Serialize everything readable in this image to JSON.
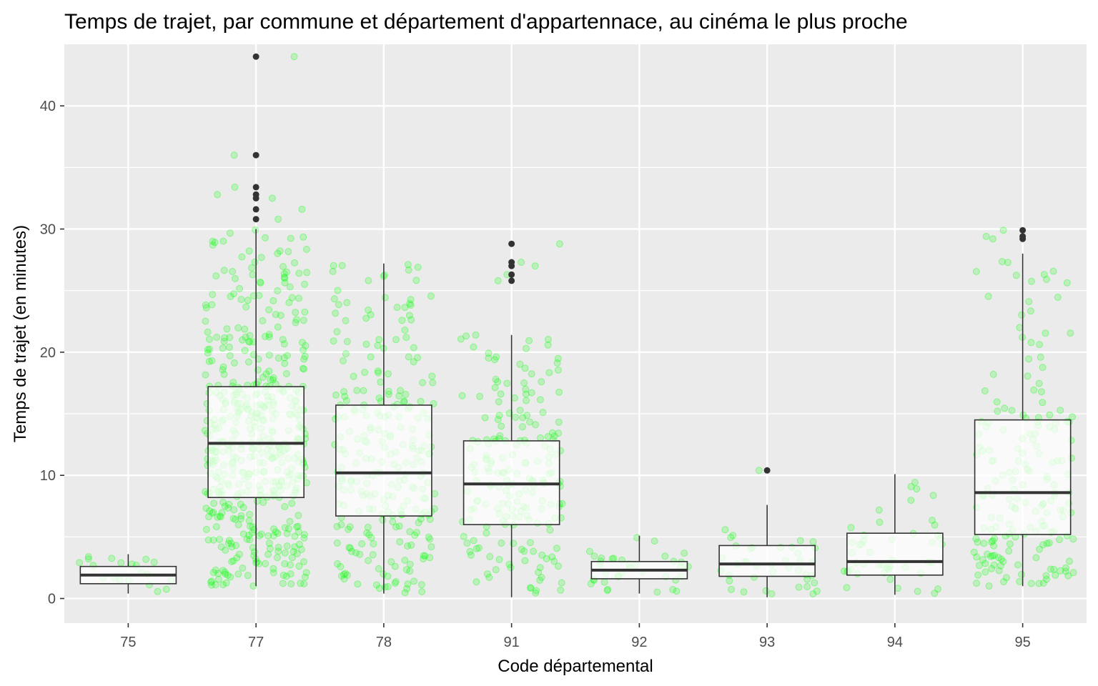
{
  "chart_data": {
    "type": "boxplot",
    "title": "Temps de trajet, par commune et département d'appartennace, au cinéma le plus proche",
    "xlabel": "Code départemental",
    "ylabel": "Temps de trajet (en minutes)",
    "ylim": [
      -2,
      45
    ],
    "y_ticks": [
      0,
      10,
      20,
      30,
      40
    ],
    "grid": true,
    "colors": {
      "panel": "#ebebeb",
      "grid": "#ffffff",
      "box_stroke": "#333333",
      "box_fill": "#ffffff",
      "outlier": "#333333",
      "jitter": "#00ff00"
    },
    "categories": [
      "75",
      "77",
      "78",
      "91",
      "92",
      "93",
      "94",
      "95"
    ],
    "boxes": [
      {
        "code": "75",
        "n": 20,
        "min": 0.4,
        "q1": 1.2,
        "median": 1.9,
        "q3": 2.6,
        "max": 3.6,
        "outliers": []
      },
      {
        "code": "77",
        "n": 510,
        "min": 1.0,
        "q1": 8.2,
        "median": 12.6,
        "q3": 17.2,
        "max": 30.0,
        "outliers": [
          30.8,
          31.6,
          32.5,
          32.8,
          33.4,
          36.0,
          44.0
        ]
      },
      {
        "code": "78",
        "n": 262,
        "min": 0.4,
        "q1": 6.7,
        "median": 10.2,
        "q3": 15.7,
        "max": 27.2,
        "outliers": []
      },
      {
        "code": "91",
        "n": 196,
        "min": 0.1,
        "q1": 6.0,
        "median": 9.3,
        "q3": 12.8,
        "max": 21.4,
        "outliers": [
          25.8,
          26.3,
          27.0,
          27.3,
          28.8
        ]
      },
      {
        "code": "92",
        "n": 36,
        "min": 0.4,
        "q1": 1.6,
        "median": 2.3,
        "q3": 3.0,
        "max": 5.1,
        "outliers": []
      },
      {
        "code": "93",
        "n": 40,
        "min": 0.1,
        "q1": 1.8,
        "median": 2.8,
        "q3": 4.3,
        "max": 7.6,
        "outliers": [
          10.4
        ]
      },
      {
        "code": "94",
        "n": 47,
        "min": 0.3,
        "q1": 1.9,
        "median": 3.0,
        "q3": 5.3,
        "max": 10.1,
        "outliers": []
      },
      {
        "code": "95",
        "n": 185,
        "min": 1.0,
        "q1": 5.2,
        "median": 8.6,
        "q3": 14.5,
        "max": 28.0,
        "outliers": [
          29.2,
          29.4,
          29.9
        ]
      }
    ]
  }
}
